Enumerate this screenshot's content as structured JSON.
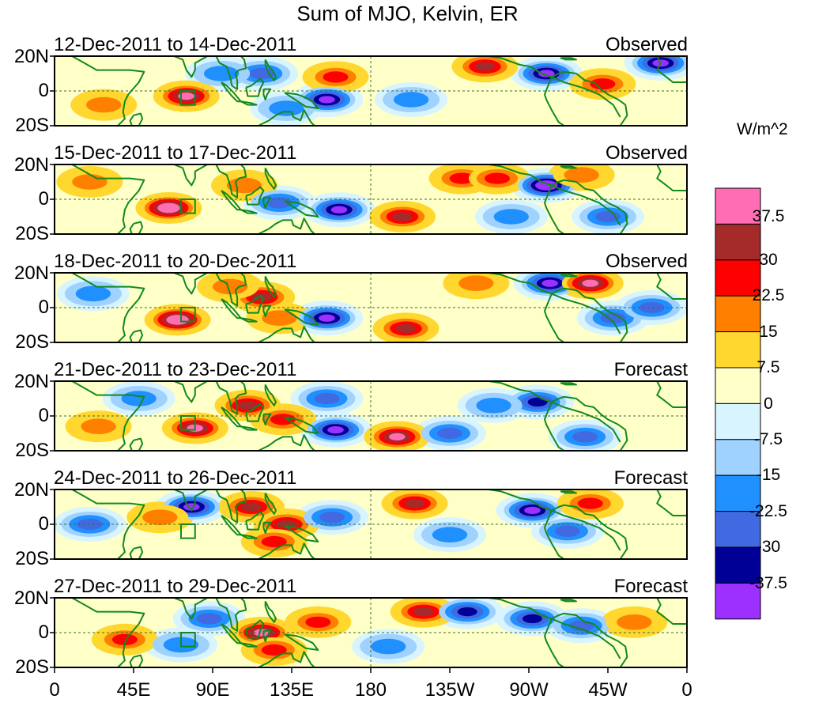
{
  "title": "Sum of MJO, Kelvin, ER",
  "units": "W/m^2",
  "lat_labels": [
    "20N",
    "0",
    "20S"
  ],
  "lon_labels": [
    "0",
    "45E",
    "90E",
    "135E",
    "180",
    "135W",
    "90W",
    "45W",
    "0"
  ],
  "panels": [
    {
      "dates": "12-Dec-2011 to 14-Dec-2011",
      "kind": "Observed"
    },
    {
      "dates": "15-Dec-2011 to 17-Dec-2011",
      "kind": "Observed"
    },
    {
      "dates": "18-Dec-2011 to 20-Dec-2011",
      "kind": "Observed"
    },
    {
      "dates": "21-Dec-2011 to 23-Dec-2011",
      "kind": "Forecast"
    },
    {
      "dates": "24-Dec-2011 to 26-Dec-2011",
      "kind": "Forecast"
    },
    {
      "dates": "27-Dec-2011 to 29-Dec-2011",
      "kind": "Forecast"
    }
  ],
  "colorbar": {
    "labels": [
      "37.5",
      "30",
      "22.5",
      "15",
      "7.5",
      "0",
      "-7.5",
      "-15",
      "-22.5",
      "-30",
      "-37.5"
    ],
    "colors": [
      "#ff6eb4",
      "#a52a2a",
      "#ff0000",
      "#ff7f00",
      "#ffd72e",
      "#ffffc8",
      "#d8f4ff",
      "#a0d2ff",
      "#2090ff",
      "#4169e1",
      "#000096",
      "#9b30ff"
    ]
  },
  "chart_data": {
    "type": "heatmap",
    "title": "Sum of MJO, Kelvin, ER",
    "variable_units": "W/m^2",
    "x_range": [
      "0",
      "0"
    ],
    "y_range": [
      "20S",
      "20N"
    ],
    "levels": [
      -37.5,
      -30,
      -22.5,
      -15,
      -7.5,
      0,
      7.5,
      15,
      22.5,
      30,
      37.5
    ],
    "anomalies": [
      [
        {
          "lon": 75,
          "lat": -3,
          "value": 32
        },
        {
          "lon": 28,
          "lat": -8,
          "value": 14
        },
        {
          "lon": 118,
          "lat": 10,
          "value": -22
        },
        {
          "lon": 160,
          "lat": 8,
          "value": 16
        },
        {
          "lon": 155,
          "lat": -5,
          "value": -34
        },
        {
          "lon": 203,
          "lat": -5,
          "value": -14
        },
        {
          "lon": 245,
          "lat": 14,
          "value": 27
        },
        {
          "lon": 280,
          "lat": 10,
          "value": -35
        },
        {
          "lon": 312,
          "lat": 4,
          "value": 20
        },
        {
          "lon": 345,
          "lat": 16,
          "value": -32
        },
        {
          "lon": 132,
          "lat": -10,
          "value": -12
        },
        {
          "lon": 95,
          "lat": 10,
          "value": -10
        }
      ],
      [
        {
          "lon": 65,
          "lat": -5,
          "value": 40
        },
        {
          "lon": 20,
          "lat": 10,
          "value": 12
        },
        {
          "lon": 108,
          "lat": 8,
          "value": 14
        },
        {
          "lon": 128,
          "lat": -2,
          "value": -18
        },
        {
          "lon": 162,
          "lat": -6,
          "value": -30
        },
        {
          "lon": 198,
          "lat": -10,
          "value": 28
        },
        {
          "lon": 232,
          "lat": 12,
          "value": 16
        },
        {
          "lon": 252,
          "lat": 12,
          "value": 20
        },
        {
          "lon": 280,
          "lat": 8,
          "value": -38
        },
        {
          "lon": 300,
          "lat": 14,
          "value": 10
        },
        {
          "lon": 315,
          "lat": -10,
          "value": -20
        },
        {
          "lon": 260,
          "lat": -10,
          "value": -10
        }
      ],
      [
        {
          "lon": 70,
          "lat": -7,
          "value": 40
        },
        {
          "lon": 118,
          "lat": 6,
          "value": 27
        },
        {
          "lon": 100,
          "lat": 12,
          "value": 10
        },
        {
          "lon": 128,
          "lat": -6,
          "value": 14
        },
        {
          "lon": 155,
          "lat": -6,
          "value": -34
        },
        {
          "lon": 200,
          "lat": -12,
          "value": 26
        },
        {
          "lon": 240,
          "lat": 14,
          "value": 14
        },
        {
          "lon": 282,
          "lat": 14,
          "value": -32
        },
        {
          "lon": 305,
          "lat": 14,
          "value": 30
        },
        {
          "lon": 318,
          "lat": -6,
          "value": -20
        },
        {
          "lon": 22,
          "lat": 8,
          "value": -12
        },
        {
          "lon": 340,
          "lat": 0,
          "value": -15
        }
      ],
      [
        {
          "lon": 80,
          "lat": -7,
          "value": 30
        },
        {
          "lon": 110,
          "lat": 6,
          "value": 24
        },
        {
          "lon": 130,
          "lat": -2,
          "value": 22
        },
        {
          "lon": 160,
          "lat": -8,
          "value": -34
        },
        {
          "lon": 195,
          "lat": -12,
          "value": 32
        },
        {
          "lon": 225,
          "lat": -10,
          "value": -20
        },
        {
          "lon": 275,
          "lat": 8,
          "value": -28
        },
        {
          "lon": 250,
          "lat": 6,
          "value": -12
        },
        {
          "lon": 302,
          "lat": -12,
          "value": -22
        },
        {
          "lon": 48,
          "lat": 10,
          "value": -14
        },
        {
          "lon": 155,
          "lat": 10,
          "value": -15
        },
        {
          "lon": 25,
          "lat": -6,
          "value": 10
        }
      ],
      [
        {
          "lon": 78,
          "lat": 10,
          "value": -34
        },
        {
          "lon": 112,
          "lat": 10,
          "value": 27
        },
        {
          "lon": 132,
          "lat": 0,
          "value": 26
        },
        {
          "lon": 125,
          "lat": -10,
          "value": 20
        },
        {
          "lon": 158,
          "lat": 4,
          "value": -15
        },
        {
          "lon": 205,
          "lat": 12,
          "value": 28
        },
        {
          "lon": 272,
          "lat": 8,
          "value": -34
        },
        {
          "lon": 305,
          "lat": 12,
          "value": 22
        },
        {
          "lon": 292,
          "lat": -4,
          "value": -22
        },
        {
          "lon": 60,
          "lat": 4,
          "value": 12
        },
        {
          "lon": 225,
          "lat": -6,
          "value": -14
        },
        {
          "lon": 20,
          "lat": 0,
          "value": -15
        }
      ],
      [
        {
          "lon": 118,
          "lat": 0,
          "value": 32
        },
        {
          "lon": 125,
          "lat": -10,
          "value": 22
        },
        {
          "lon": 88,
          "lat": 8,
          "value": -22
        },
        {
          "lon": 150,
          "lat": 6,
          "value": 16
        },
        {
          "lon": 210,
          "lat": 12,
          "value": 26
        },
        {
          "lon": 235,
          "lat": 12,
          "value": -24
        },
        {
          "lon": 272,
          "lat": 8,
          "value": -24
        },
        {
          "lon": 300,
          "lat": 4,
          "value": -20
        },
        {
          "lon": 72,
          "lat": -7,
          "value": -12
        },
        {
          "lon": 40,
          "lat": -4,
          "value": 18
        },
        {
          "lon": 190,
          "lat": -8,
          "value": -14
        },
        {
          "lon": 330,
          "lat": 6,
          "value": 12
        }
      ]
    ]
  }
}
